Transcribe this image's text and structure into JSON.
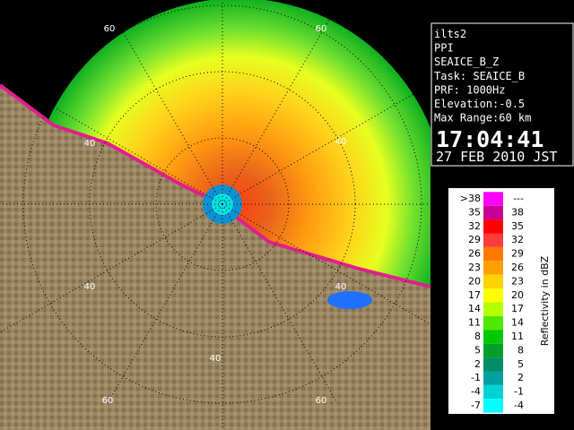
{
  "info": {
    "lines": [
      "ilts2",
      "PPI",
      "SEAICE_B_Z",
      "Task: SEAICE_B",
      "PRF: 1000Hz",
      "Elevation:-0.5",
      "Max Range:60 km"
    ],
    "time": "17:04:41",
    "date": "27 FEB 2010 JST"
  },
  "legend": {
    "title": "Reflectivity in dBZ",
    "rows": [
      [
        ">38",
        "---"
      ],
      [
        "35",
        "38"
      ],
      [
        "32",
        "35"
      ],
      [
        "29",
        "32"
      ],
      [
        "26",
        "29"
      ],
      [
        "23",
        "26"
      ],
      [
        "20",
        "23"
      ],
      [
        "17",
        "20"
      ],
      [
        "14",
        "17"
      ],
      [
        "11",
        "14"
      ],
      [
        "8",
        "11"
      ],
      [
        "5",
        "8"
      ],
      [
        "2",
        "5"
      ],
      [
        "-1",
        "2"
      ],
      [
        "-4",
        "-1"
      ],
      [
        "-7",
        "-4"
      ]
    ],
    "colors": [
      "#ff00ff",
      "#c80096",
      "#ff0000",
      "#ff3c3c",
      "#ff7800",
      "#ffa000",
      "#ffd200",
      "#ffff00",
      "#b4ff00",
      "#50e600",
      "#00c800",
      "#00a028",
      "#008c64",
      "#00a0a0",
      "#00d2d2",
      "#00ffff"
    ]
  },
  "rings": [
    "60",
    "60",
    "40",
    "40",
    "40",
    "40",
    "40",
    "60",
    "60"
  ]
}
